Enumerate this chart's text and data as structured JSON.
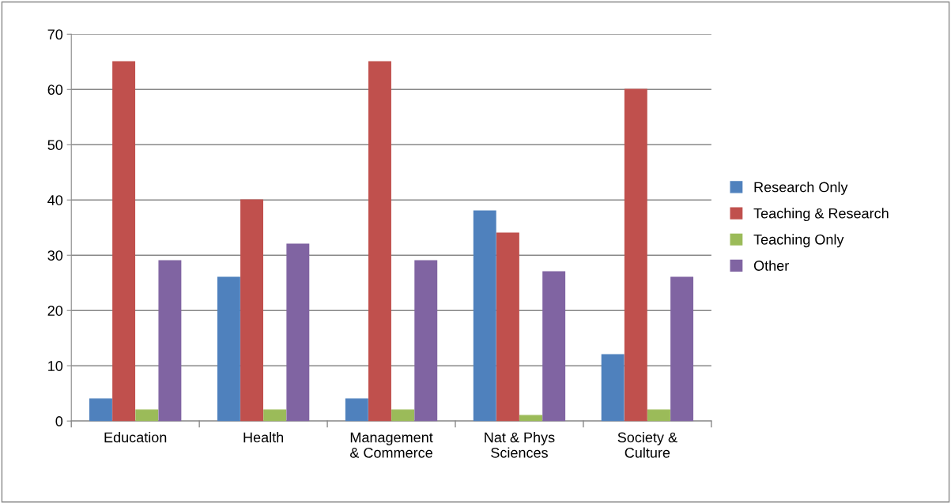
{
  "chart_data": {
    "type": "bar",
    "categories": [
      "Education",
      "Health",
      "Management\n& Commerce",
      "Nat & Phys\nSciences",
      "Society &\nCulture"
    ],
    "series": [
      {
        "name": "Research Only",
        "color": "#4f81bd",
        "values": [
          4,
          26,
          4,
          38,
          12
        ]
      },
      {
        "name": "Teaching & Research",
        "color": "#c0504d",
        "values": [
          65,
          40,
          65,
          34,
          60
        ]
      },
      {
        "name": "Teaching Only",
        "color": "#9bbb59",
        "values": [
          2,
          2,
          2,
          1,
          2
        ]
      },
      {
        "name": "Other",
        "color": "#8064a2",
        "values": [
          29,
          32,
          29,
          27,
          26
        ]
      }
    ],
    "ylim": [
      0,
      70
    ],
    "yticks": [
      0,
      10,
      20,
      30,
      40,
      50,
      60,
      70
    ],
    "grid": "y",
    "legend": "right"
  }
}
